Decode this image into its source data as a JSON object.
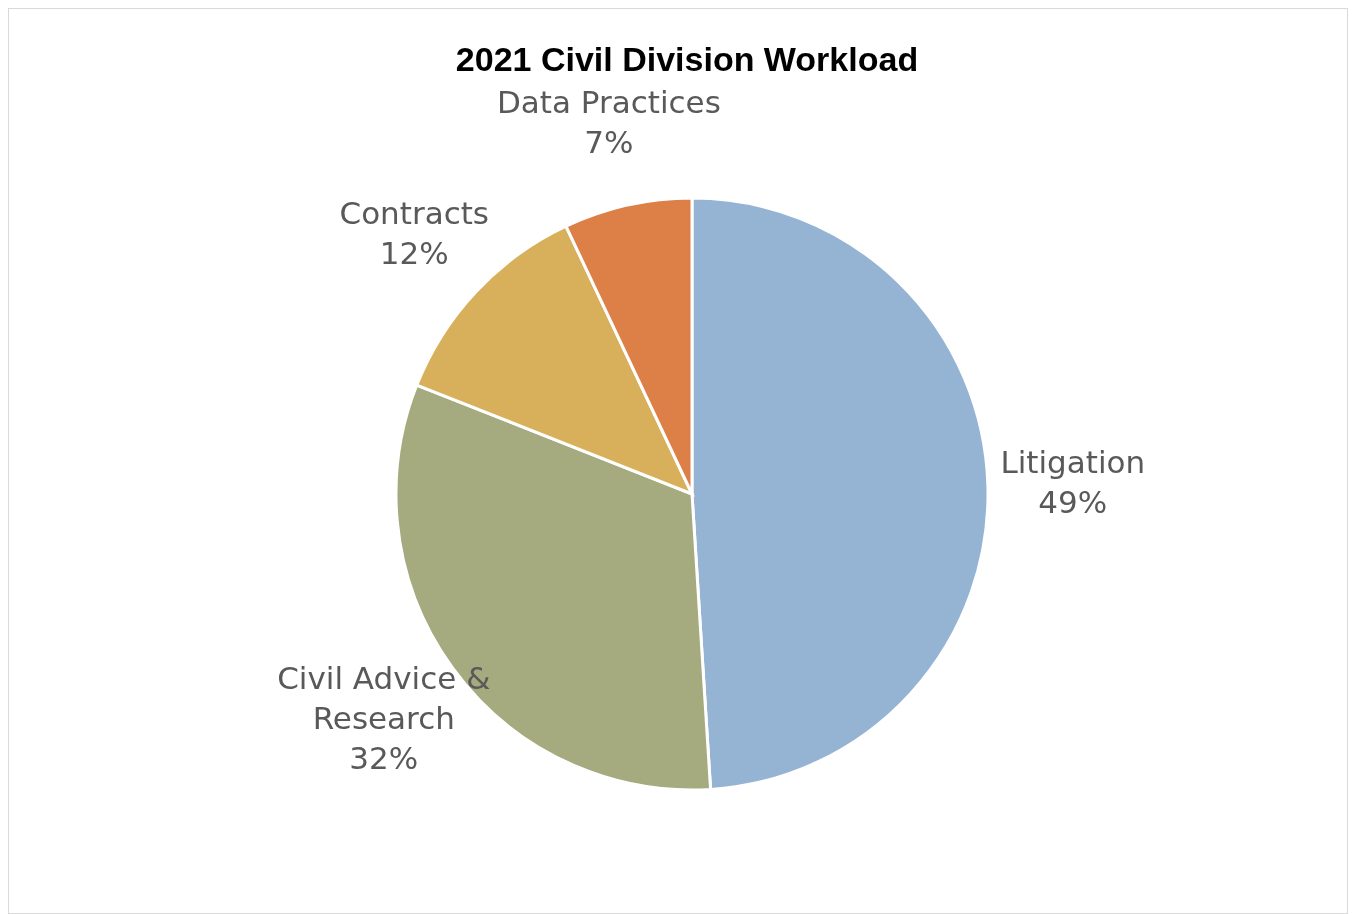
{
  "chart_data": {
    "type": "pie",
    "title": "2021 Civil Division Workload",
    "categories": [
      "Litigation",
      "Civil Advice & Research",
      "Contracts",
      "Data Practices"
    ],
    "values": [
      49,
      32,
      12,
      7
    ],
    "value_labels": [
      "49%",
      "32%",
      "12%",
      "7%"
    ],
    "colors": [
      "#95b3d3",
      "#a5ab7f",
      "#d8b05c",
      "#dd8047"
    ]
  }
}
